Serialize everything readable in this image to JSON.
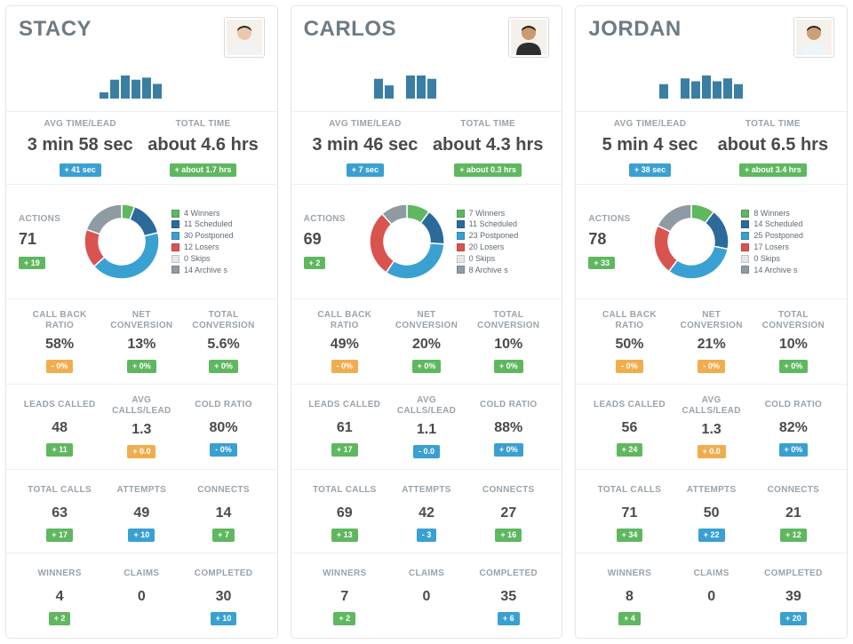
{
  "colors": {
    "green_badge": "#5fb760",
    "blue_badge": "#3aa0d1",
    "orange_badge": "#f0ad4e",
    "spark": "#3b7ea3",
    "label": "#9aa3aa",
    "value": "#4a4a4a",
    "legend_winners": "#5fb760",
    "legend_scheduled": "#2b6a9b",
    "legend_postponed": "#3aa0d1",
    "legend_losers": "#d9534f",
    "legend_skips": "#e6e6e6",
    "legend_archive": "#8f9aa3"
  },
  "row1_labels": {
    "avg_time": "AVG TIME/LEAD",
    "total_time": "TOTAL TIME"
  },
  "actions_label": "ACTIONS",
  "legend_labels": {
    "winners": "Winners",
    "scheduled": "Scheduled",
    "postponed": "Postponed",
    "losers": "Losers",
    "skips": "Skips",
    "archive": "Archive s"
  },
  "metric_labels": {
    "call_back": "CALL BACK RATIO",
    "net_conv": "NET CONVERSION",
    "total_conv": "TOTAL CONVERSION",
    "leads_called": "LEADS CALLED",
    "avg_calls": "AVG CALLS/LEAD",
    "cold_ratio": "COLD RATIO",
    "total_calls": "TOTAL CALLS",
    "attempts": "ATTEMPTS",
    "connects": "CONNECTS",
    "winners": "WINNERS",
    "claims": "CLAIMS",
    "completed": "COMPLETED"
  },
  "people": [
    {
      "name": "STACY",
      "avatar_skin": "#e8c9b0",
      "avatar_hair": "#2d2420",
      "avatar_shirt": "#f2f2f2",
      "spark_bars": [
        0,
        6,
        18,
        22,
        18,
        20,
        14,
        0,
        0,
        0
      ],
      "avg_time": "3 min 58 sec",
      "avg_time_delta": {
        "text": "+ 41 sec",
        "color": "blue_badge"
      },
      "total_time": "about 4.6 hrs",
      "total_time_delta": {
        "text": "+ about 1.7 hrs",
        "color": "green_badge"
      },
      "actions": {
        "value": "71",
        "delta": {
          "text": "+ 19",
          "color": "green_badge"
        }
      },
      "donut": {
        "winners": 4,
        "scheduled": 11,
        "postponed": 30,
        "losers": 12,
        "skips": 0,
        "archive": 14
      },
      "metrics": {
        "call_back": {
          "value": "58%",
          "delta": {
            "text": "- 0%",
            "color": "orange_badge"
          }
        },
        "net_conv": {
          "value": "13%",
          "delta": {
            "text": "+ 0%",
            "color": "green_badge"
          }
        },
        "total_conv": {
          "value": "5.6%",
          "delta": {
            "text": "+ 0%",
            "color": "green_badge"
          }
        },
        "leads_called": {
          "value": "48",
          "delta": {
            "text": "+ 11",
            "color": "green_badge"
          }
        },
        "avg_calls": {
          "value": "1.3",
          "delta": {
            "text": "+ 0.0",
            "color": "orange_badge"
          }
        },
        "cold_ratio": {
          "value": "80%",
          "delta": {
            "text": "- 0%",
            "color": "blue_badge"
          }
        },
        "total_calls": {
          "value": "63",
          "delta": {
            "text": "+ 17",
            "color": "green_badge"
          }
        },
        "attempts": {
          "value": "49",
          "delta": {
            "text": "+ 10",
            "color": "blue_badge"
          }
        },
        "connects": {
          "value": "14",
          "delta": {
            "text": "+ 7",
            "color": "green_badge"
          }
        },
        "winners": {
          "value": "4",
          "delta": {
            "text": "+ 2",
            "color": "green_badge"
          }
        },
        "claims": {
          "value": "0",
          "delta": null
        },
        "completed": {
          "value": "30",
          "delta": {
            "text": "+ 10",
            "color": "blue_badge"
          }
        }
      }
    },
    {
      "name": "CARLOS",
      "avatar_skin": "#c99a6f",
      "avatar_hair": "#1f1a16",
      "avatar_shirt": "#2e2e2e",
      "spark_bars": [
        12,
        8,
        0,
        14,
        14,
        12,
        0,
        0,
        0,
        0
      ],
      "avg_time": "3 min 46 sec",
      "avg_time_delta": {
        "text": "+ 7 sec",
        "color": "blue_badge"
      },
      "total_time": "about 4.3 hrs",
      "total_time_delta": {
        "text": "+ about 0.3 hrs",
        "color": "green_badge"
      },
      "actions": {
        "value": "69",
        "delta": {
          "text": "+ 2",
          "color": "green_badge"
        }
      },
      "donut": {
        "winners": 7,
        "scheduled": 11,
        "postponed": 23,
        "losers": 20,
        "skips": 0,
        "archive": 8
      },
      "metrics": {
        "call_back": {
          "value": "49%",
          "delta": {
            "text": "- 0%",
            "color": "orange_badge"
          }
        },
        "net_conv": {
          "value": "20%",
          "delta": {
            "text": "+ 0%",
            "color": "green_badge"
          }
        },
        "total_conv": {
          "value": "10%",
          "delta": {
            "text": "+ 0%",
            "color": "green_badge"
          }
        },
        "leads_called": {
          "value": "61",
          "delta": {
            "text": "+ 17",
            "color": "green_badge"
          }
        },
        "avg_calls": {
          "value": "1.1",
          "delta": {
            "text": "- 0.0",
            "color": "blue_badge"
          }
        },
        "cold_ratio": {
          "value": "88%",
          "delta": {
            "text": "+ 0%",
            "color": "blue_badge"
          }
        },
        "total_calls": {
          "value": "69",
          "delta": {
            "text": "+ 13",
            "color": "green_badge"
          }
        },
        "attempts": {
          "value": "42",
          "delta": {
            "text": "- 3",
            "color": "blue_badge"
          }
        },
        "connects": {
          "value": "27",
          "delta": {
            "text": "+ 16",
            "color": "green_badge"
          }
        },
        "winners": {
          "value": "7",
          "delta": {
            "text": "+ 2",
            "color": "green_badge"
          }
        },
        "claims": {
          "value": "0",
          "delta": null
        },
        "completed": {
          "value": "35",
          "delta": {
            "text": "+ 6",
            "color": "blue_badge"
          }
        }
      }
    },
    {
      "name": "JORDAN",
      "avatar_skin": "#c9a07a",
      "avatar_hair": "#2a221c",
      "avatar_shirt": "#eef5f9",
      "spark_bars": [
        10,
        0,
        14,
        12,
        16,
        12,
        14,
        10,
        0,
        0
      ],
      "avg_time": "5 min 4 sec",
      "avg_time_delta": {
        "text": "+ 38 sec",
        "color": "blue_badge"
      },
      "total_time": "about 6.5 hrs",
      "total_time_delta": {
        "text": "+ about 3.4 hrs",
        "color": "green_badge"
      },
      "actions": {
        "value": "78",
        "delta": {
          "text": "+ 33",
          "color": "green_badge"
        }
      },
      "donut": {
        "winners": 8,
        "scheduled": 14,
        "postponed": 25,
        "losers": 17,
        "skips": 0,
        "archive": 14
      },
      "metrics": {
        "call_back": {
          "value": "50%",
          "delta": {
            "text": "- 0%",
            "color": "orange_badge"
          }
        },
        "net_conv": {
          "value": "21%",
          "delta": {
            "text": "- 0%",
            "color": "orange_badge"
          }
        },
        "total_conv": {
          "value": "10%",
          "delta": {
            "text": "+ 0%",
            "color": "green_badge"
          }
        },
        "leads_called": {
          "value": "56",
          "delta": {
            "text": "+ 24",
            "color": "green_badge"
          }
        },
        "avg_calls": {
          "value": "1.3",
          "delta": {
            "text": "+ 0.0",
            "color": "orange_badge"
          }
        },
        "cold_ratio": {
          "value": "82%",
          "delta": {
            "text": "+ 0%",
            "color": "blue_badge"
          }
        },
        "total_calls": {
          "value": "71",
          "delta": {
            "text": "+ 34",
            "color": "green_badge"
          }
        },
        "attempts": {
          "value": "50",
          "delta": {
            "text": "+ 22",
            "color": "blue_badge"
          }
        },
        "connects": {
          "value": "21",
          "delta": {
            "text": "+ 12",
            "color": "green_badge"
          }
        },
        "winners": {
          "value": "8",
          "delta": {
            "text": "+ 4",
            "color": "green_badge"
          }
        },
        "claims": {
          "value": "0",
          "delta": null
        },
        "completed": {
          "value": "39",
          "delta": {
            "text": "+ 20",
            "color": "blue_badge"
          }
        }
      }
    }
  ]
}
